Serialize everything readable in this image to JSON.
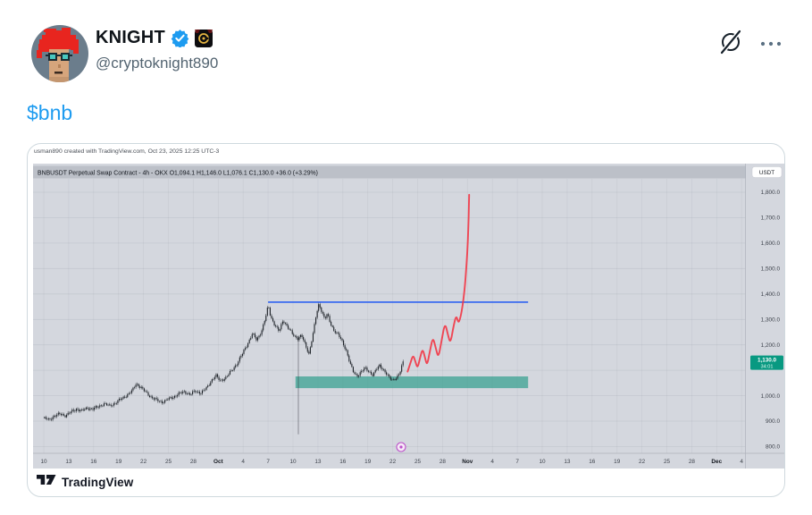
{
  "colors": {
    "accent_blue": "#1d9bf0",
    "text_primary": "#0f1419",
    "text_secondary": "#536471"
  },
  "tweet": {
    "display_name": "KNIGHT",
    "handle": "@cryptoknight890",
    "cashtag": "$bnb"
  },
  "chart": {
    "attribution": "usman890 created with TradingView.com, Oct 23, 2025 12:25 UTC-3",
    "legend": "BNBUSDT Perpetual Swap Contract - 4h - OKX  O1,094.1  H1,146.0  L1,076.1  C1,130.0  +36.0 (+3.29%)",
    "currency_button": "USDT",
    "last_price": "1,130.0",
    "countdown": "34:01",
    "watermark": "TradingView"
  },
  "chart_data": {
    "type": "candlestick",
    "symbol": "BNBUSDT Perpetual Swap Contract",
    "interval": "4h",
    "exchange": "OKX",
    "ohlc": {
      "open": "1,094.1",
      "high": "1,146.0",
      "low": "1,076.1",
      "close": "1,130.0",
      "change": "+36.0 (+3.29%)"
    },
    "last_price": 1130.0,
    "countdown": "34:01",
    "y_axis": {
      "grid_values": [
        800,
        900,
        1000,
        1100,
        1200,
        1300,
        1400,
        1500,
        1600,
        1700,
        1800
      ],
      "ticks": [
        [
          1800,
          "1,800.0"
        ],
        [
          1700,
          "1,700.0"
        ],
        [
          1600,
          "1,600.0"
        ],
        [
          1500,
          "1,500.0"
        ],
        [
          1400,
          "1,400.0"
        ],
        [
          1300,
          "1,300.0"
        ],
        [
          1200,
          "1,200.0"
        ],
        [
          1000,
          "1,000.0"
        ],
        [
          900,
          "900.0"
        ],
        [
          800,
          "800.0"
        ]
      ]
    },
    "x_axis": {
      "labels": [
        "10",
        "13",
        "16",
        "19",
        "22",
        "25",
        "28",
        "Oct",
        "4",
        "7",
        "10",
        "13",
        "16",
        "19",
        "22",
        "25",
        "28",
        "Nov",
        "4",
        "7",
        "10",
        "13",
        "16",
        "19",
        "22",
        "25",
        "28",
        "Dec",
        "4"
      ],
      "month_labels": [
        "Oct",
        "Nov",
        "Dec"
      ]
    },
    "price_path": [
      [
        0,
        912
      ],
      [
        0.7,
        905
      ],
      [
        1.3,
        920
      ],
      [
        2,
        928
      ],
      [
        2.7,
        922
      ],
      [
        3.3,
        935
      ],
      [
        4,
        948
      ],
      [
        4.7,
        940
      ],
      [
        5.3,
        952
      ],
      [
        6,
        948
      ],
      [
        6.7,
        958
      ],
      [
        7.3,
        968
      ],
      [
        8,
        960
      ],
      [
        8.7,
        972
      ],
      [
        9.3,
        985
      ],
      [
        10,
        1000
      ],
      [
        10.7,
        1018
      ],
      [
        11.2,
        1048
      ],
      [
        11.7,
        1035
      ],
      [
        12.3,
        1015
      ],
      [
        13,
        995
      ],
      [
        13.7,
        982
      ],
      [
        14.3,
        975
      ],
      [
        15,
        985
      ],
      [
        15.7,
        995
      ],
      [
        16.3,
        1008
      ],
      [
        17,
        1015
      ],
      [
        17.7,
        1005
      ],
      [
        18.3,
        1018
      ],
      [
        19,
        1012
      ],
      [
        19.7,
        1030
      ],
      [
        20.3,
        1062
      ],
      [
        20.8,
        1080
      ],
      [
        21.3,
        1058
      ],
      [
        22,
        1072
      ],
      [
        22.7,
        1098
      ],
      [
        23.3,
        1125
      ],
      [
        24,
        1165
      ],
      [
        24.7,
        1210
      ],
      [
        25.2,
        1245
      ],
      [
        25.7,
        1218
      ],
      [
        26.3,
        1255
      ],
      [
        26.8,
        1310
      ],
      [
        27.1,
        1355
      ],
      [
        27.4,
        1310
      ],
      [
        27.9,
        1278
      ],
      [
        28.4,
        1252
      ],
      [
        28.9,
        1298
      ],
      [
        29.4,
        1272
      ],
      [
        30,
        1242
      ],
      [
        30.6,
        1225
      ],
      [
        31.1,
        1238
      ],
      [
        31.6,
        1195
      ],
      [
        32,
        1165
      ],
      [
        32.5,
        1245
      ],
      [
        32.9,
        1320
      ],
      [
        33.2,
        1360
      ],
      [
        33.6,
        1328
      ],
      [
        33.9,
        1302
      ],
      [
        34.2,
        1320
      ],
      [
        34.6,
        1282
      ],
      [
        35,
        1258
      ],
      [
        35.5,
        1242
      ],
      [
        36,
        1212
      ],
      [
        36.5,
        1178
      ],
      [
        37,
        1122
      ],
      [
        37.4,
        1088
      ],
      [
        37.8,
        1078
      ],
      [
        38.2,
        1092
      ],
      [
        38.7,
        1108
      ],
      [
        39.2,
        1096
      ],
      [
        39.7,
        1082
      ],
      [
        40.1,
        1102
      ],
      [
        40.5,
        1118
      ],
      [
        40.9,
        1106
      ],
      [
        41.3,
        1088
      ],
      [
        41.7,
        1068
      ],
      [
        42.1,
        1060
      ],
      [
        42.5,
        1072
      ],
      [
        42.9,
        1085
      ],
      [
        43.3,
        1130
      ]
    ],
    "flash_wick": {
      "day": 30.65,
      "from": 1235,
      "to": 848
    },
    "resistance_line": {
      "price": 1368,
      "day_start": 27,
      "day_end": 58.3,
      "color": "#2e62f0"
    },
    "support_zone": {
      "price_top": 1076,
      "price_bottom": 1030,
      "day_start": 30.3,
      "day_end": 58.3,
      "color": "#35a08f"
    },
    "projection_path": [
      [
        43.8,
        1095
      ],
      [
        44.1,
        1125
      ],
      [
        44.45,
        1162
      ],
      [
        44.75,
        1132
      ],
      [
        45.0,
        1108
      ],
      [
        45.3,
        1150
      ],
      [
        45.6,
        1186
      ],
      [
        45.9,
        1148
      ],
      [
        46.15,
        1118
      ],
      [
        46.5,
        1180
      ],
      [
        46.85,
        1232
      ],
      [
        47.2,
        1185
      ],
      [
        47.5,
        1148
      ],
      [
        47.9,
        1220
      ],
      [
        48.3,
        1288
      ],
      [
        48.65,
        1240
      ],
      [
        48.95,
        1205
      ],
      [
        49.3,
        1270
      ],
      [
        49.65,
        1318
      ],
      [
        49.9,
        1285
      ],
      [
        50.15,
        1305
      ],
      [
        50.45,
        1360
      ],
      [
        50.7,
        1430
      ],
      [
        50.9,
        1520
      ],
      [
        51.05,
        1610
      ],
      [
        51.15,
        1700
      ],
      [
        51.2,
        1790
      ]
    ],
    "projection_color": "#f23645",
    "colors": {
      "panel": "#d4d7de",
      "grid_h": "rgba(70,80,100,0.10)",
      "grid_v": "rgba(70,80,100,0.07)",
      "candle": "#1c2127",
      "legend_bar": "rgba(125,132,145,0.28)",
      "text_dark": "#14181f",
      "text_axis": "#3e434c",
      "axis_border": "#aeb2bb",
      "up_green": "#089981"
    }
  }
}
